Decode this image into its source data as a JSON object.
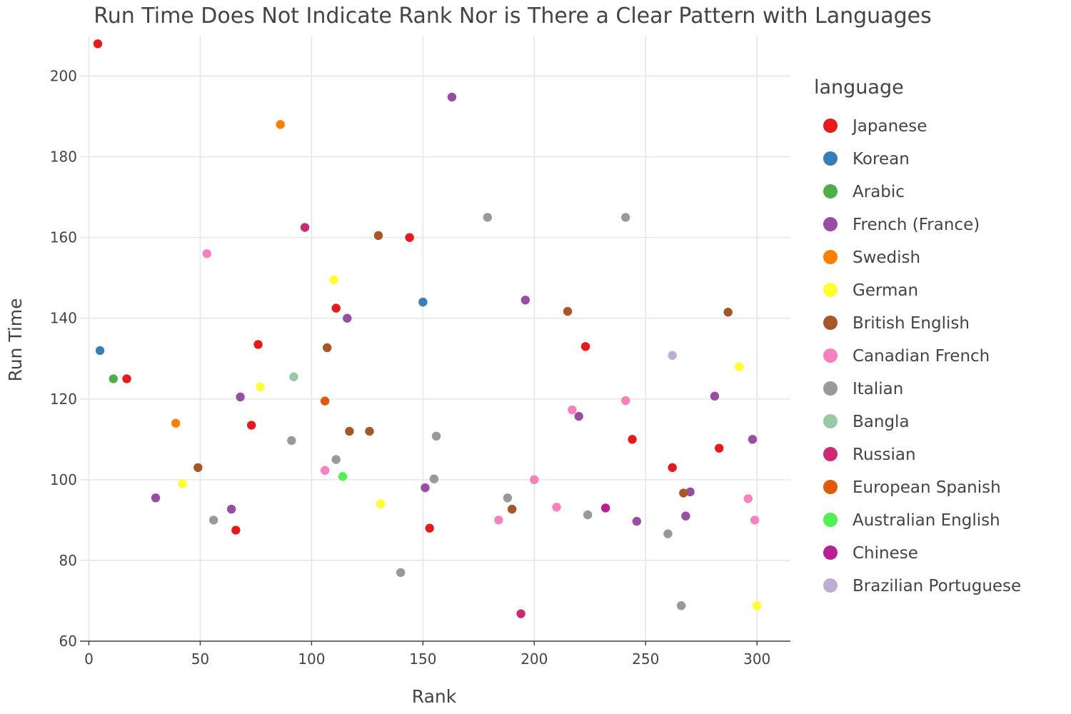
{
  "chart_data": {
    "type": "scatter",
    "title": "Run Time Does Not Indicate Rank Nor is There a Clear Pattern with Languages",
    "xlabel": "Rank",
    "ylabel": "Run Time",
    "xlim": [
      -4,
      315
    ],
    "ylim": [
      60,
      210
    ],
    "x_ticks": [
      0,
      50,
      100,
      150,
      200,
      250,
      300
    ],
    "y_ticks": [
      60,
      80,
      100,
      120,
      140,
      160,
      180,
      200
    ],
    "grid": true,
    "legend_title": "language",
    "legend_position": "right",
    "series": [
      {
        "name": "Japanese",
        "color": "#e41a1c",
        "points": [
          [
            4,
            208
          ],
          [
            17,
            125
          ],
          [
            66,
            87.5
          ],
          [
            73,
            113.5
          ],
          [
            76,
            133.5
          ],
          [
            111,
            142.5
          ],
          [
            144,
            160
          ],
          [
            153,
            88
          ],
          [
            223,
            133
          ],
          [
            244,
            110
          ],
          [
            262,
            103
          ],
          [
            283,
            107.8
          ]
        ]
      },
      {
        "name": "Korean",
        "color": "#377eb8",
        "points": [
          [
            5,
            132
          ],
          [
            150,
            144
          ]
        ]
      },
      {
        "name": "Arabic",
        "color": "#4daf4a",
        "points": [
          [
            11,
            125
          ]
        ]
      },
      {
        "name": "French (France)",
        "color": "#984ea3",
        "points": [
          [
            30,
            95.5
          ],
          [
            64,
            92.7
          ],
          [
            68,
            120.5
          ],
          [
            116,
            140
          ],
          [
            151,
            98
          ],
          [
            163,
            194.8
          ],
          [
            196,
            144.5
          ],
          [
            220,
            115.7
          ],
          [
            246,
            89.7
          ],
          [
            268,
            91
          ],
          [
            270,
            97
          ],
          [
            281,
            120.7
          ],
          [
            298,
            110
          ]
        ]
      },
      {
        "name": "Swedish",
        "color": "#ff7f00",
        "points": [
          [
            39,
            114
          ],
          [
            86,
            188
          ]
        ]
      },
      {
        "name": "German",
        "color": "#ffff33",
        "points": [
          [
            42,
            99
          ],
          [
            77,
            123
          ],
          [
            110,
            149.5
          ],
          [
            131,
            94
          ],
          [
            292,
            128
          ],
          [
            300,
            68.8
          ]
        ]
      },
      {
        "name": "British English",
        "color": "#a65628",
        "points": [
          [
            49,
            103
          ],
          [
            107,
            132.7
          ],
          [
            117,
            112
          ],
          [
            126,
            112
          ],
          [
            130,
            160.5
          ],
          [
            190,
            92.7
          ],
          [
            215,
            141.7
          ],
          [
            267,
            96.7
          ],
          [
            287,
            141.5
          ]
        ]
      },
      {
        "name": "Canadian French",
        "color": "#f781bf",
        "points": [
          [
            53,
            156
          ],
          [
            106,
            102.3
          ],
          [
            184,
            90
          ],
          [
            200,
            100
          ],
          [
            210,
            93.2
          ],
          [
            217,
            117.3
          ],
          [
            241,
            119.6
          ],
          [
            296,
            95.3
          ],
          [
            299,
            90
          ]
        ]
      },
      {
        "name": "Italian",
        "color": "#999999",
        "points": [
          [
            56,
            90
          ],
          [
            91,
            109.7
          ],
          [
            111,
            105
          ],
          [
            140,
            77
          ],
          [
            155,
            100.2
          ],
          [
            156,
            110.8
          ],
          [
            179,
            165
          ],
          [
            188,
            95.5
          ],
          [
            224,
            91.3
          ],
          [
            241,
            165
          ],
          [
            260,
            86.6
          ],
          [
            266,
            68.8
          ]
        ]
      },
      {
        "name": "Bangla",
        "color": "#99c8a4",
        "points": [
          [
            92,
            125.5
          ]
        ]
      },
      {
        "name": "Russian",
        "color": "#cc2a72",
        "points": [
          [
            97,
            162.5
          ],
          [
            194,
            66.8
          ]
        ]
      },
      {
        "name": "European Spanish",
        "color": "#e05a0a",
        "points": [
          [
            106,
            119.5
          ]
        ]
      },
      {
        "name": "Australian English",
        "color": "#54ef54",
        "points": [
          [
            114,
            100.8
          ]
        ]
      },
      {
        "name": "Chinese",
        "color": "#b82094",
        "points": [
          [
            232,
            93
          ]
        ]
      },
      {
        "name": "Brazilian Portuguese",
        "color": "#bfaed0",
        "points": [
          [
            262,
            130.8
          ]
        ]
      }
    ]
  }
}
